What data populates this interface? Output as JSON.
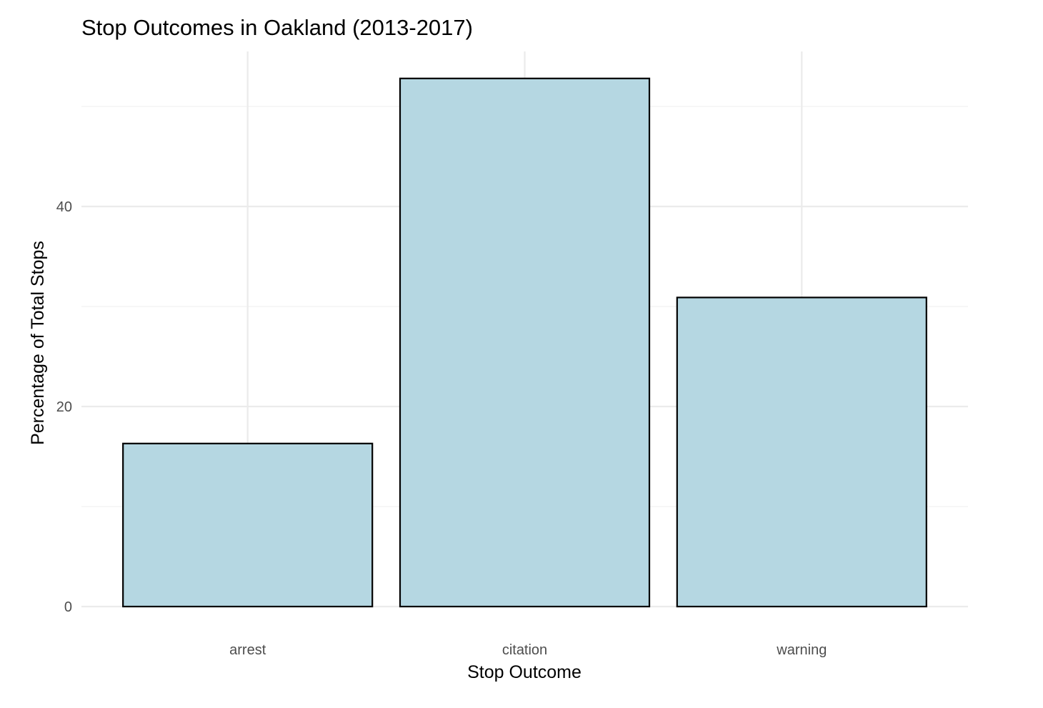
{
  "chart_data": {
    "type": "bar",
    "title": "Stop Outcomes in Oakland (2013-2017)",
    "xlabel": "Stop Outcome",
    "ylabel": "Percentage of Total Stops",
    "categories": [
      "arrest",
      "citation",
      "warning"
    ],
    "values": [
      16.3,
      52.8,
      30.9
    ],
    "ylim": [
      0,
      55.5
    ],
    "yticks": [
      0,
      20,
      40
    ],
    "yticks_minor": [
      10,
      30,
      50
    ],
    "grid": true,
    "legend": "none",
    "colors": {
      "bar_fill": "#b5d7e2",
      "bar_stroke": "#000000",
      "grid": "#ebebeb",
      "tick_text": "#4d4d4d"
    }
  }
}
